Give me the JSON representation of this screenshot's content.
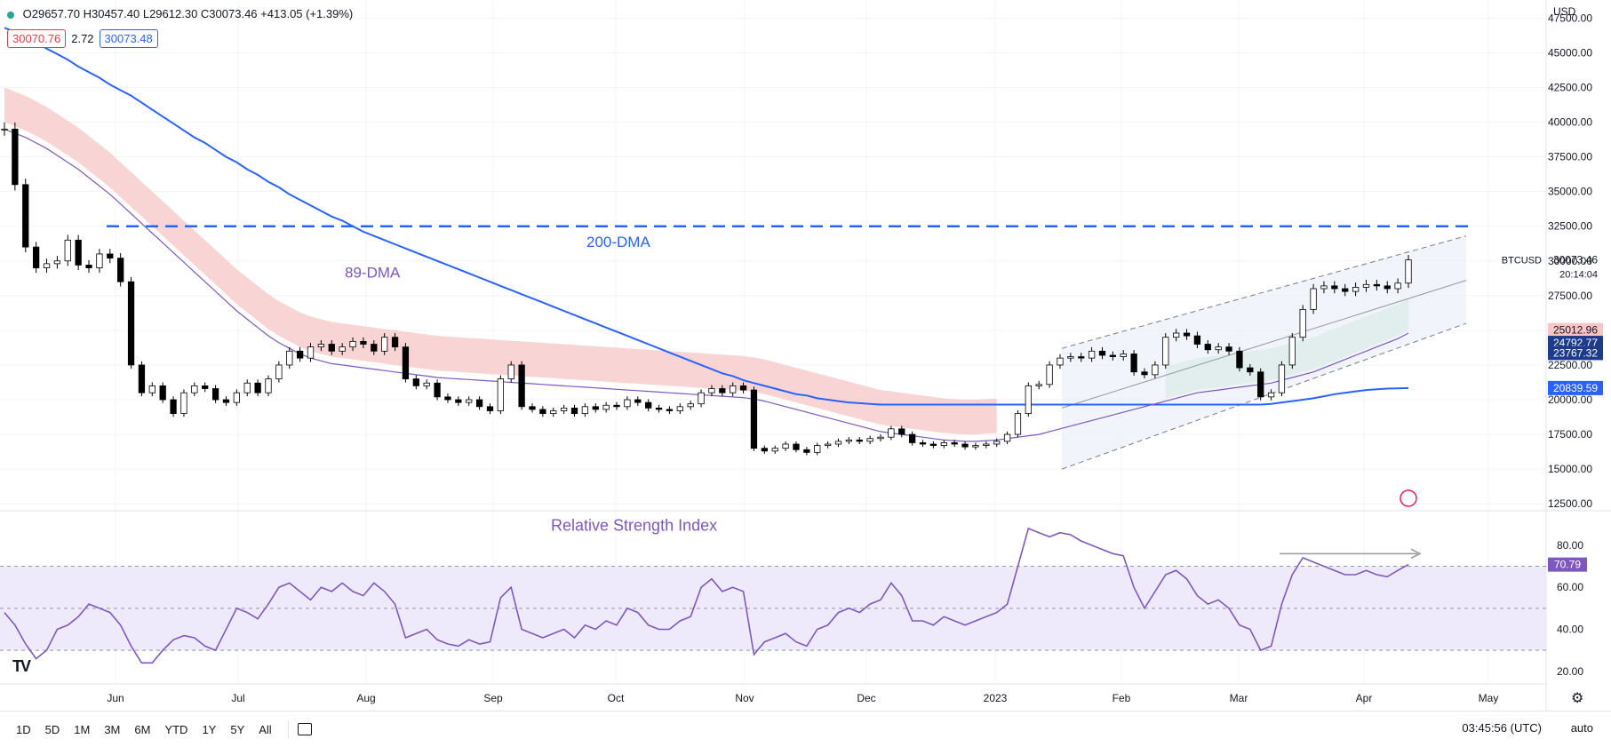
{
  "header": {
    "open": "O29657.70",
    "high": "H30457.40",
    "low": "L29612.30",
    "close": "C30073.46",
    "change": "+413.05 (+1.39%)",
    "bid": "30070.76",
    "spread": "2.72",
    "ask": "30073.48"
  },
  "currency": "USD",
  "timeframes": [
    "1D",
    "5D",
    "1M",
    "3M",
    "6M",
    "YTD",
    "1Y",
    "5Y",
    "All"
  ],
  "clock": "03:45:56 (UTC)",
  "auto_label": "auto",
  "logo": "TV",
  "colors": {
    "up": "#ffffff",
    "down": "#000000",
    "dma200": "#2962ff",
    "dma89": "#7e57c2",
    "cloud_red": "#f8c9c9",
    "cloud_green": "#cde8d4",
    "rsi": "#7e57c2",
    "rsi_band": "#efeafb"
  },
  "chart_data": [
    {
      "type": "line",
      "symbol": "BTCUSD",
      "x_ticks": [
        "Jun",
        "Jul",
        "Aug",
        "Sep",
        "Oct",
        "Nov",
        "Dec",
        "2023",
        "Feb",
        "Mar",
        "Apr",
        "May"
      ],
      "y_ticks": [
        12500,
        15000,
        17500,
        20000,
        22500,
        25000,
        27500,
        30000,
        32500,
        35000,
        37500,
        40000,
        42500,
        45000,
        47500
      ],
      "y_tick_labels": [
        "12500.00",
        "15000.00",
        "17500.00",
        "20000.00",
        "22500.00",
        "25000.00",
        "27500.00",
        "30000.00",
        "32500.00",
        "35000.00",
        "37500.00",
        "40000.00",
        "42500.00",
        "45000.00",
        "47500.00"
      ],
      "ylim": [
        12000,
        48800
      ],
      "annotations": {
        "dma200_label": "200-DMA",
        "dma89_label": "89-DMA",
        "resistance_level": 32500
      },
      "price_labels": {
        "symbol_price": "30073.46",
        "countdown": "20:14:04",
        "red_label": "25012.96",
        "blue_dark_1": "24792.77",
        "blue_dark_2": "23767.32",
        "blue_label": "20839.59"
      },
      "price_label_values": {
        "red_label": 25012.96,
        "blue_dark_1": 24792.77,
        "blue_dark_2": 23767.32,
        "blue_label": 20839.59,
        "symbol_price": 30073.46
      },
      "series": [
        {
          "name": "BTCUSD",
          "values": [
            39500,
            35500,
            31000,
            29500,
            29800,
            30000,
            31500,
            29700,
            29500,
            30500,
            30200,
            28500,
            22500,
            20500,
            21000,
            20000,
            19000,
            20500,
            21000,
            20800,
            20000,
            19800,
            20500,
            21200,
            20500,
            21500,
            22500,
            23500,
            23000,
            23800,
            24000,
            23500,
            23800,
            24200,
            24000,
            23500,
            24500,
            23800,
            21500,
            21000,
            21200,
            20200,
            20000,
            19800,
            20000,
            19500,
            19200,
            21500,
            22500,
            19500,
            19300,
            19000,
            19200,
            19400,
            19000,
            19500,
            19300,
            19600,
            19500,
            20000,
            19800,
            19400,
            19300,
            19200,
            19500,
            19700,
            20500,
            20800,
            20500,
            21000,
            20700,
            16500,
            16300,
            16500,
            16800,
            16400,
            16200,
            16700,
            16800,
            17000,
            17100,
            17000,
            17200,
            17300,
            17900,
            17500,
            16900,
            16800,
            16700,
            16900,
            16800,
            16600,
            16700,
            16800,
            17000,
            17500,
            19000,
            21000,
            21100,
            22500,
            23000,
            23100,
            23000,
            23500,
            23200,
            23100,
            23300,
            22000,
            21800,
            22500,
            24500,
            24800,
            24600,
            24000,
            23600,
            23800,
            23500,
            22300,
            22000,
            20200,
            20500,
            22500,
            24500,
            26500,
            28000,
            28200,
            28000,
            27800,
            28100,
            28300,
            28200,
            28000,
            28400,
            30073
          ]
        },
        {
          "name": "200-DMA",
          "values": [
            46800,
            46500,
            46100,
            45700,
            45300,
            44900,
            44500,
            44000,
            43600,
            43200,
            42700,
            42300,
            41900,
            41400,
            40900,
            40400,
            39900,
            39400,
            38900,
            38500,
            38000,
            37500,
            37100,
            36600,
            36200,
            35700,
            35300,
            34800,
            34400,
            34000,
            33600,
            33200,
            32900,
            32500,
            32100,
            31800,
            31500,
            31200,
            30900,
            30600,
            30300,
            30000,
            29700,
            29400,
            29100,
            28800,
            28500,
            28200,
            27900,
            27600,
            27300,
            27000,
            26700,
            26400,
            26100,
            25800,
            25500,
            25200,
            24900,
            24600,
            24300,
            24000,
            23700,
            23400,
            23100,
            22800,
            22500,
            22200,
            21900,
            21700,
            21400,
            21200,
            21000,
            20800,
            20600,
            20400,
            20300,
            20100,
            20000,
            19900,
            19800,
            19750,
            19700,
            19650,
            19650,
            19650,
            19650,
            19650,
            19650,
            19650,
            19650,
            19650,
            19650,
            19650,
            19650,
            19650,
            19650,
            19650,
            19650,
            19650,
            19650,
            19650,
            19650,
            19650,
            19650,
            19650,
            19650,
            19650,
            19650,
            19650,
            19650,
            19650,
            19650,
            19650,
            19650,
            19650,
            19650,
            19650,
            19650,
            19650,
            19700,
            19800,
            19900,
            20000,
            20100,
            20250,
            20400,
            20500,
            20600,
            20700,
            20750,
            20800,
            20820,
            20839
          ]
        },
        {
          "name": "89-DMA",
          "values": [
            39500,
            39200,
            38900,
            38500,
            38100,
            37600,
            37100,
            36600,
            36000,
            35400,
            34800,
            34100,
            33400,
            32700,
            32000,
            31300,
            30600,
            29900,
            29200,
            28500,
            27800,
            27100,
            26400,
            25800,
            25200,
            24600,
            24100,
            23700,
            23300,
            23000,
            22800,
            22600,
            22500,
            22400,
            22300,
            22200,
            22100,
            22000,
            21900,
            21800,
            21700,
            21600,
            21550,
            21500,
            21450,
            21400,
            21350,
            21300,
            21250,
            21200,
            21150,
            21100,
            21050,
            21000,
            20950,
            20900,
            20850,
            20800,
            20750,
            20700,
            20650,
            20600,
            20550,
            20500,
            20450,
            20400,
            20350,
            20300,
            20250,
            20200,
            20150,
            20050,
            19900,
            19700,
            19500,
            19300,
            19100,
            18900,
            18700,
            18500,
            18300,
            18100,
            17900,
            17700,
            17600,
            17500,
            17400,
            17300,
            17200,
            17100,
            17050,
            17000,
            17000,
            17050,
            17100,
            17200,
            17300,
            17400,
            17500,
            17700,
            17900,
            18100,
            18300,
            18500,
            18700,
            18900,
            19100,
            19300,
            19500,
            19700,
            19900,
            20100,
            20300,
            20500,
            20600,
            20700,
            20800,
            20900,
            21000,
            21100,
            21200,
            21400,
            21600,
            21800,
            22000,
            22300,
            22600,
            22900,
            23200,
            23500,
            23800,
            24100,
            24400,
            24792
          ]
        }
      ]
    },
    {
      "type": "line",
      "title": "Relative Strength Index",
      "y_ticks": [
        20,
        40,
        60,
        80
      ],
      "y_tick_labels": [
        "20.00",
        "40.00",
        "60.00",
        "80.00"
      ],
      "ylim": [
        14,
        96
      ],
      "bands": [
        30,
        50,
        70
      ],
      "current_label": "70.79",
      "current_value": 70.79,
      "series": [
        {
          "name": "RSI",
          "values": [
            48,
            42,
            33,
            26,
            30,
            40,
            42,
            46,
            52,
            50,
            48,
            42,
            32,
            24,
            24,
            30,
            35,
            37,
            36,
            32,
            30,
            40,
            50,
            48,
            45,
            52,
            60,
            62,
            58,
            54,
            60,
            58,
            62,
            58,
            56,
            62,
            58,
            52,
            36,
            38,
            40,
            35,
            33,
            32,
            35,
            33,
            34,
            55,
            60,
            40,
            38,
            36,
            38,
            40,
            36,
            42,
            40,
            44,
            42,
            50,
            48,
            42,
            40,
            40,
            44,
            46,
            60,
            64,
            58,
            60,
            58,
            28,
            34,
            36,
            38,
            34,
            32,
            40,
            42,
            48,
            50,
            48,
            52,
            54,
            62,
            56,
            44,
            44,
            42,
            46,
            44,
            42,
            44,
            46,
            48,
            52,
            70,
            88,
            86,
            84,
            86,
            85,
            82,
            80,
            78,
            76,
            75,
            60,
            50,
            58,
            66,
            68,
            64,
            56,
            52,
            54,
            50,
            42,
            40,
            30,
            32,
            52,
            66,
            74,
            72,
            70,
            68,
            66,
            66,
            68,
            66,
            65,
            68,
            70.79
          ]
        }
      ]
    }
  ]
}
